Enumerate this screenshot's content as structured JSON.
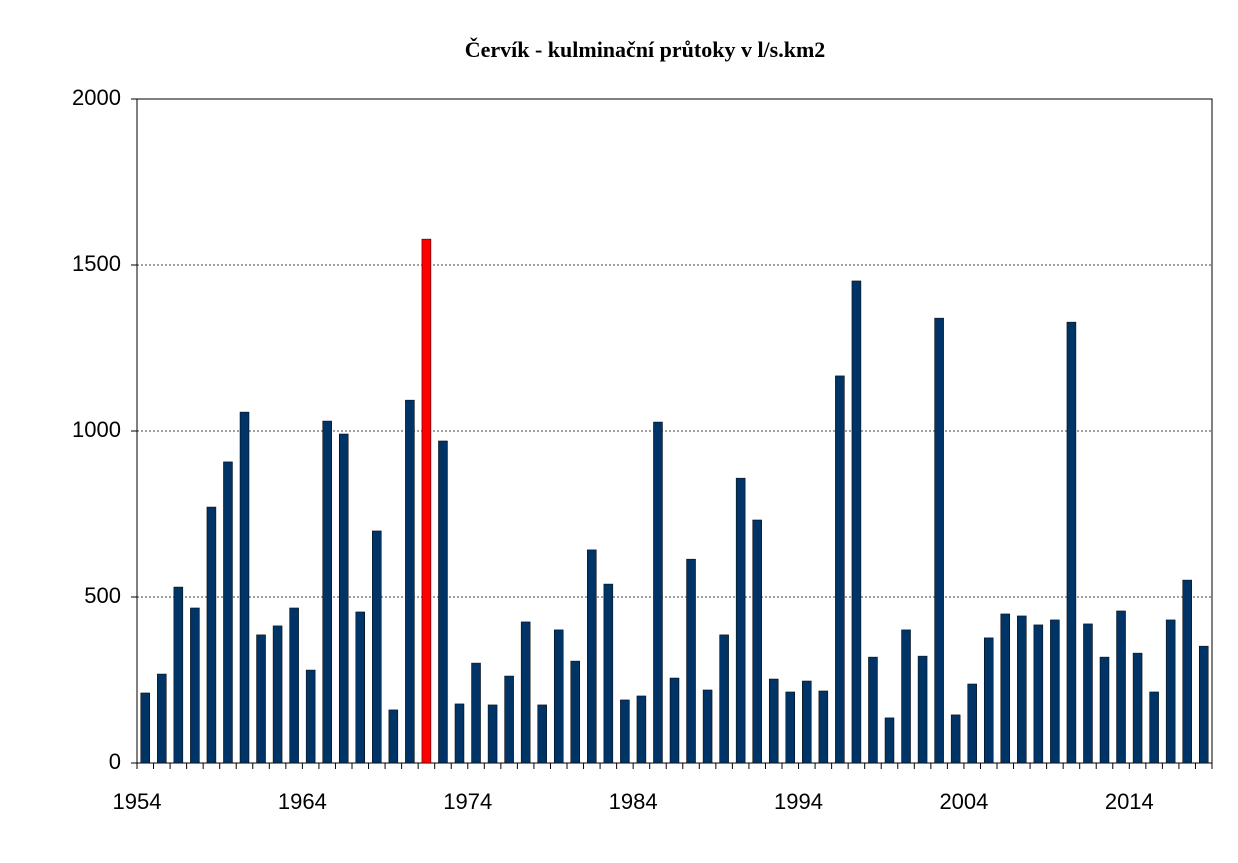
{
  "chart_data": {
    "type": "bar",
    "title": "Červík - kulminační průtoky v l/s.km2",
    "categories": [
      "1954",
      null,
      null,
      null,
      null,
      null,
      null,
      null,
      null,
      null,
      "1964",
      null,
      null,
      null,
      null,
      null,
      null,
      null,
      null,
      null,
      "1974",
      null,
      null,
      null,
      null,
      null,
      null,
      null,
      null,
      null,
      "1984",
      null,
      null,
      null,
      null,
      null,
      null,
      null,
      null,
      null,
      "1994",
      null,
      null,
      null,
      null,
      null,
      null,
      null,
      null,
      null,
      "2004",
      null,
      null,
      null,
      null,
      null,
      null,
      null,
      null,
      null,
      "2014",
      null,
      null,
      null,
      null
    ],
    "values": [
      211,
      268,
      530,
      467,
      771,
      907,
      1057,
      386,
      413,
      467,
      280,
      1030,
      991,
      455,
      699,
      160,
      1093,
      1578,
      970,
      178,
      301,
      175,
      262,
      425,
      175,
      401,
      307,
      642,
      539,
      190,
      202,
      1027,
      256,
      614,
      220,
      386,
      858,
      732,
      253,
      214,
      247,
      217,
      1166,
      1452,
      319,
      136,
      401,
      322,
      1340,
      145,
      238,
      377,
      449,
      443,
      416,
      431,
      1328,
      419,
      319,
      458,
      331,
      214,
      431,
      551,
      352
    ],
    "colors": [
      "#003366",
      "#003366",
      "#003366",
      "#003366",
      "#003366",
      "#003366",
      "#003366",
      "#003366",
      "#003366",
      "#003366",
      "#003366",
      "#003366",
      "#003366",
      "#003366",
      "#003366",
      "#003366",
      "#003366",
      "#ff0000",
      "#003366",
      "#003366",
      "#003366",
      "#003366",
      "#003366",
      "#003366",
      "#003366",
      "#003366",
      "#003366",
      "#003366",
      "#003366",
      "#003366",
      "#003366",
      "#003366",
      "#003366",
      "#003366",
      "#003366",
      "#003366",
      "#003366",
      "#003366",
      "#003366",
      "#003366",
      "#003366",
      "#003366",
      "#003366",
      "#003366",
      "#003366",
      "#003366",
      "#003366",
      "#003366",
      "#003366",
      "#003366",
      "#003366",
      "#003366",
      "#003366",
      "#003366",
      "#003366",
      "#003366",
      "#003366",
      "#003366",
      "#003366",
      "#003366",
      "#003366",
      "#003366",
      "#003366",
      "#003366",
      "#003366"
    ],
    "ylim": [
      0,
      2000
    ],
    "yticks": [
      0,
      500,
      1000,
      1500,
      2000
    ],
    "grid": true
  }
}
